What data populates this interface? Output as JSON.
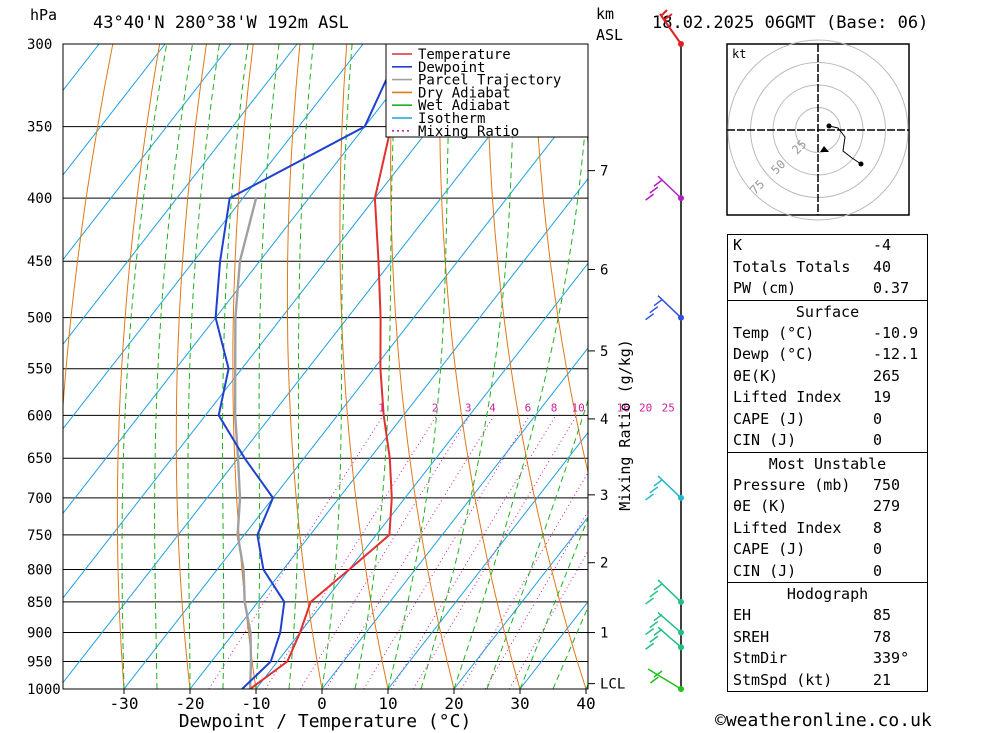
{
  "header": {
    "pressure_unit": "hPa",
    "location": "43°40'N 280°38'W 192m ASL",
    "km_label": "km",
    "asl_label": "ASL",
    "datetime": "18.02.2025 06GMT (Base: 06)"
  },
  "legend": [
    "Temperature",
    "Dewpoint",
    "Parcel Trajectory",
    "Dry Adiabat",
    "Wet Adiabat",
    "Isotherm",
    "Mixing Ratio"
  ],
  "colors": {
    "temperature": "#e03030",
    "dewpoint": "#2040d0",
    "parcel": "#a0a0a0",
    "dry_adiabat": "#e07818",
    "wet_adiabat": "#20b020",
    "isotherm": "#20a0e0",
    "mixing_ratio": "#d0209a"
  },
  "chart_data": {
    "type": "skew-t",
    "xlabel": "Dewpoint / Temperature (°C)",
    "ylabel_right": "Mixing Ratio (g/kg)",
    "pressure_levels": [
      300,
      350,
      400,
      450,
      500,
      550,
      600,
      650,
      700,
      750,
      800,
      850,
      900,
      950,
      1000
    ],
    "x_ticks": [
      -30,
      -20,
      -10,
      0,
      10,
      20,
      30,
      40
    ],
    "km_ticks": [
      {
        "label": "7",
        "p": 380
      },
      {
        "label": "6",
        "p": 457
      },
      {
        "label": "5",
        "p": 532
      },
      {
        "label": "4",
        "p": 604
      },
      {
        "label": "3",
        "p": 696
      },
      {
        "label": "2",
        "p": 790
      },
      {
        "label": "1",
        "p": 900
      },
      {
        "label": "LCL",
        "p": 990
      }
    ],
    "mixing_ratio_labels": [
      "1",
      "2",
      "3",
      "4",
      "6",
      "8",
      "10",
      "16",
      "20",
      "25"
    ],
    "temperature": [
      [
        1000,
        -10.9
      ],
      [
        950,
        -8.5
      ],
      [
        900,
        -10
      ],
      [
        850,
        -12
      ],
      [
        800,
        -10
      ],
      [
        750,
        -8
      ],
      [
        700,
        -12
      ],
      [
        650,
        -17
      ],
      [
        600,
        -23
      ],
      [
        550,
        -29
      ],
      [
        500,
        -35
      ],
      [
        450,
        -42
      ],
      [
        400,
        -50
      ],
      [
        350,
        -56
      ],
      [
        300,
        -61
      ]
    ],
    "dewpoint": [
      [
        1000,
        -12.1
      ],
      [
        950,
        -11
      ],
      [
        900,
        -13
      ],
      [
        850,
        -16
      ],
      [
        800,
        -23
      ],
      [
        750,
        -28
      ],
      [
        700,
        -30
      ],
      [
        650,
        -39
      ],
      [
        600,
        -48
      ],
      [
        550,
        -52
      ],
      [
        500,
        -60
      ],
      [
        450,
        -66
      ],
      [
        400,
        -72
      ],
      [
        350,
        -60
      ],
      [
        300,
        -64
      ]
    ],
    "parcel": [
      [
        1000,
        -10.9
      ],
      [
        950,
        -14
      ],
      [
        900,
        -17.5
      ],
      [
        850,
        -22
      ],
      [
        800,
        -26
      ],
      [
        750,
        -31
      ],
      [
        700,
        -35
      ],
      [
        650,
        -40
      ],
      [
        600,
        -45.5
      ],
      [
        550,
        -51
      ],
      [
        500,
        -57
      ],
      [
        450,
        -63
      ],
      [
        400,
        -68
      ]
    ],
    "wind_levels": [
      300,
      400,
      500,
      700,
      850,
      900,
      925,
      1000
    ],
    "hodograph": {
      "unit_label": "kt",
      "ring_labels": [
        "25",
        "50",
        "75"
      ]
    }
  },
  "indices": {
    "top": [
      {
        "k": "K",
        "v": "-4"
      },
      {
        "k": "Totals Totals",
        "v": "40"
      },
      {
        "k": "PW (cm)",
        "v": "0.37"
      }
    ],
    "surface_title": "Surface",
    "surface": [
      {
        "k": "Temp (°C)",
        "v": "-10.9"
      },
      {
        "k": "Dewp (°C)",
        "v": "-12.1"
      },
      {
        "k": "θE(K)",
        "v": "265"
      },
      {
        "k": "Lifted Index",
        "v": "19"
      },
      {
        "k": "CAPE (J)",
        "v": "0"
      },
      {
        "k": "CIN (J)",
        "v": "0"
      }
    ],
    "mu_title": "Most Unstable",
    "mu": [
      {
        "k": "Pressure (mb)",
        "v": "750"
      },
      {
        "k": "θE (K)",
        "v": "279"
      },
      {
        "k": "Lifted Index",
        "v": "8"
      },
      {
        "k": "CAPE (J)",
        "v": "0"
      },
      {
        "k": "CIN (J)",
        "v": "0"
      }
    ],
    "hodo_title": "Hodograph",
    "hodo": [
      {
        "k": "EH",
        "v": "85"
      },
      {
        "k": "SREH",
        "v": "78"
      },
      {
        "k": "StmDir",
        "v": "339°"
      },
      {
        "k": "StmSpd (kt)",
        "v": "21"
      }
    ]
  },
  "footer": "©weatheronline.co.uk"
}
